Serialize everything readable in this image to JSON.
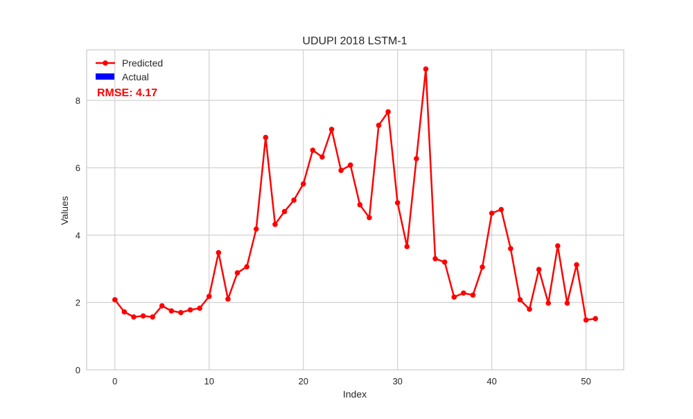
{
  "chart_data": {
    "type": "line",
    "title": "UDUPI 2018 LSTM-1",
    "xlabel": "Index",
    "ylabel": "Values",
    "xlim": [
      -3,
      54
    ],
    "ylim": [
      0,
      9.5
    ],
    "x_ticks": [
      0,
      10,
      20,
      30,
      40,
      50
    ],
    "y_ticks": [
      0,
      2,
      4,
      6,
      8
    ],
    "grid": true,
    "legend_position": "top-left",
    "annotation": "RMSE: 4.17",
    "series": [
      {
        "name": "Predicted",
        "color": "#ff0000",
        "marker": "circle",
        "x": [
          0,
          1,
          2,
          3,
          4,
          5,
          6,
          7,
          8,
          9,
          10,
          11,
          12,
          13,
          14,
          15,
          16,
          17,
          18,
          19,
          20,
          21,
          22,
          23,
          24,
          25,
          26,
          27,
          28,
          29,
          30,
          31,
          32,
          33,
          34,
          35,
          36,
          37,
          38,
          39,
          40,
          41,
          42,
          43,
          44,
          45,
          46,
          47,
          48,
          49,
          50,
          51
        ],
        "values": [
          2.08,
          1.72,
          1.57,
          1.6,
          1.57,
          1.9,
          1.75,
          1.7,
          1.78,
          1.83,
          2.18,
          3.48,
          2.1,
          2.88,
          3.06,
          4.18,
          6.9,
          4.32,
          4.7,
          5.04,
          5.52,
          6.52,
          6.32,
          7.14,
          5.92,
          6.08,
          4.9,
          4.52,
          7.26,
          7.66,
          4.96,
          3.66,
          6.27,
          8.93,
          3.3,
          3.2,
          2.16,
          2.28,
          2.22,
          3.05,
          4.65,
          4.76,
          3.6,
          2.08,
          1.8,
          2.98,
          1.98,
          3.68,
          1.98,
          3.12,
          1.48,
          1.52
        ]
      },
      {
        "name": "Actual",
        "color": "#0000ff",
        "x": [],
        "values": []
      }
    ]
  }
}
